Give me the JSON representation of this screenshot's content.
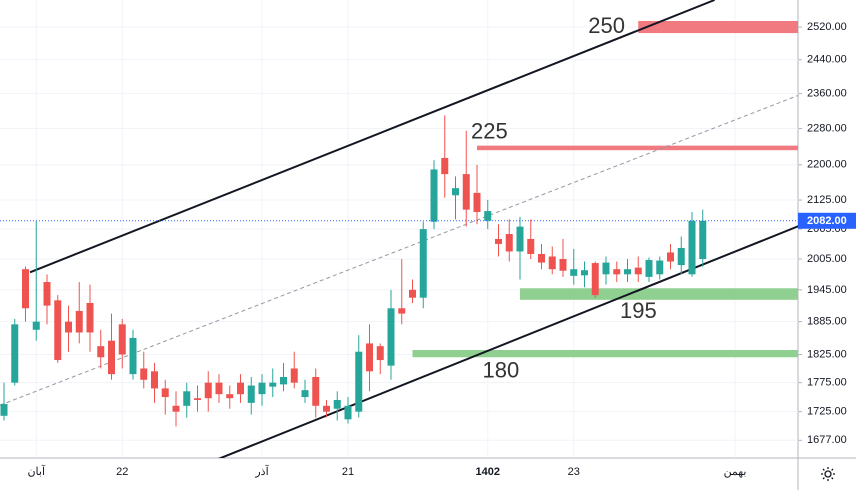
{
  "chart_data": {
    "type": "candlestick",
    "log_scale": true,
    "grid": true,
    "up_color": "#26a69a",
    "down_color": "#ef5350",
    "ylim": [
      1648,
      2588
    ],
    "yticks": [
      {
        "value": 1677,
        "label": "1677.00"
      },
      {
        "value": 1725,
        "label": "1725.00"
      },
      {
        "value": 1775,
        "label": "1775.00"
      },
      {
        "value": 1825,
        "label": "1825.00"
      },
      {
        "value": 1885,
        "label": "1885.00"
      },
      {
        "value": 1945,
        "label": "1945.00"
      },
      {
        "value": 2005,
        "label": "2005.00"
      },
      {
        "value": 2065,
        "label": "2065.00"
      },
      {
        "value": 2125,
        "label": "2125.00"
      },
      {
        "value": 2200,
        "label": "2200.00"
      },
      {
        "value": 2280,
        "label": "2280.00"
      },
      {
        "value": 2360,
        "label": "2360.00"
      },
      {
        "value": 2440,
        "label": "2440.00"
      },
      {
        "value": 2520,
        "label": "2520.00"
      }
    ],
    "categories": [
      null,
      null,
      null,
      "آبان",
      null,
      null,
      null,
      null,
      null,
      null,
      null,
      "22",
      null,
      null,
      null,
      null,
      null,
      null,
      null,
      null,
      null,
      null,
      null,
      null,
      "آذر",
      null,
      null,
      null,
      null,
      null,
      null,
      null,
      "21",
      null,
      null,
      null,
      null,
      null,
      null,
      null,
      null,
      null,
      null,
      null,
      null,
      "1402",
      null,
      null,
      null,
      null,
      null,
      null,
      null,
      "23",
      null,
      null,
      null,
      null,
      null,
      null,
      null,
      null,
      null,
      null,
      null,
      null,
      null,
      null,
      "بهمن",
      null,
      null,
      null
    ],
    "open": [
      1718,
      1775,
      1985,
      1870,
      1960,
      1925,
      1885,
      1905,
      1920,
      1840,
      1850,
      1880,
      1790,
      1800,
      1795,
      1765,
      1735,
      1735,
      1748,
      1775,
      1775,
      1755,
      1775,
      1740,
      1755,
      1768,
      1772,
      1800,
      1750,
      1785,
      1735,
      1730,
      1712,
      1725,
      1845,
      1840,
      1805,
      1910,
      1945,
      1930,
      2080,
      2215,
      2135,
      2180,
      2140,
      2082,
      2045,
      2055,
      2020,
      2045,
      2015,
      2010,
      2005,
      1972,
      1973,
      1997,
      1975,
      1985,
      1975,
      1988,
      1970,
      1975,
      2018,
      1993,
      1975,
      2005,
      null,
      null,
      null,
      null,
      null,
      null
    ],
    "high": [
      1775,
      1890,
      1990,
      2082,
      1975,
      1935,
      1915,
      1960,
      1955,
      1870,
      1900,
      1890,
      1870,
      1830,
      1810,
      1780,
      1760,
      1775,
      1770,
      1795,
      1790,
      1770,
      1790,
      1785,
      1790,
      1800,
      1810,
      1830,
      1780,
      1800,
      1745,
      1760,
      1750,
      1860,
      1880,
      1845,
      1945,
      2005,
      1965,
      2080,
      2210,
      2310,
      2175,
      2275,
      2200,
      2125,
      2075,
      2085,
      2090,
      2085,
      2035,
      2030,
      2045,
      2025,
      2000,
      2000,
      2010,
      2000,
      2005,
      2010,
      2008,
      2010,
      2035,
      2050,
      2100,
      2105,
      null,
      null,
      null,
      null,
      null,
      null
    ],
    "low": [
      1710,
      1770,
      1885,
      1850,
      1880,
      1810,
      1830,
      1845,
      1830,
      1800,
      1780,
      1800,
      1780,
      1765,
      1740,
      1720,
      1700,
      1715,
      1725,
      1725,
      1740,
      1730,
      1740,
      1720,
      1735,
      1750,
      1760,
      1765,
      1740,
      1715,
      1715,
      1710,
      1705,
      1715,
      1760,
      1790,
      1780,
      1880,
      1920,
      1910,
      2065,
      2130,
      2085,
      2070,
      2075,
      2065,
      2010,
      2000,
      1965,
      2005,
      1985,
      1975,
      1970,
      1955,
      1950,
      1930,
      1955,
      1960,
      1960,
      1960,
      1960,
      1965,
      1985,
      1975,
      1970,
      1990,
      null,
      null,
      null,
      null,
      null,
      null
    ],
    "close": [
      1738,
      1880,
      1910,
      1885,
      1915,
      1815,
      1865,
      1865,
      1865,
      1820,
      1790,
      1825,
      1855,
      1780,
      1765,
      1750,
      1725,
      1760,
      1745,
      1748,
      1755,
      1748,
      1755,
      1770,
      1775,
      1775,
      1785,
      1775,
      1762,
      1735,
      1725,
      1745,
      1735,
      1830,
      1795,
      1815,
      1910,
      1900,
      1930,
      2065,
      2190,
      2180,
      2150,
      2105,
      2100,
      2102,
      2035,
      2020,
      2070,
      2015,
      1998,
      1985,
      1982,
      1985,
      1983,
      1935,
      1998,
      1975,
      1985,
      1975,
      2003,
      2002,
      2000,
      2027,
      2082,
      2082,
      null,
      null,
      null,
      null,
      null,
      null
    ],
    "last_price": {
      "value": 2082,
      "label": "2082.00",
      "color": "#2962ff"
    },
    "zones": [
      {
        "label": "250",
        "start": 59,
        "low": 2505,
        "high": 2535,
        "color": "#f07a80"
      },
      {
        "label": "225",
        "start": 44,
        "low": 2232,
        "high": 2242,
        "color": "#f07a80"
      },
      {
        "label": "195",
        "start": 48,
        "low": 1926,
        "high": 1948,
        "color": "#8fcf8f"
      },
      {
        "label": "180",
        "start": 38,
        "low": 1820,
        "high": 1833,
        "color": "#8fcf8f"
      }
    ],
    "trend_lines": [
      {
        "x": [
          2.42,
          66.1
        ],
        "y": [
          1979,
          2588
        ],
        "style": "solid"
      },
      {
        "x": [
          19.16,
          73.9
        ],
        "y": [
          1641,
          2071
        ],
        "style": "solid"
      },
      {
        "x": [
          -0.37,
          73.9
        ],
        "y": [
          1736,
          2356
        ],
        "style": "dashed"
      }
    ]
  }
}
